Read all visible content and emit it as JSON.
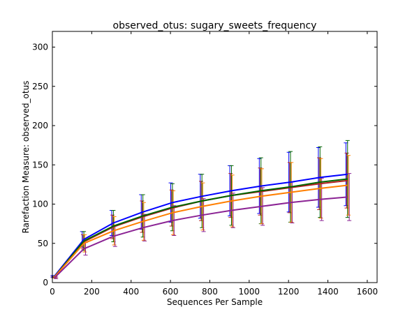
{
  "chart_data": {
    "type": "line",
    "title": "observed_otus: sugary_sweets_frequency",
    "xlabel": "Sequences Per Sample",
    "ylabel": "Rarefaction Measure: observed_otus",
    "xlim": [
      0,
      1650
    ],
    "ylim": [
      0,
      320
    ],
    "xticks": [
      0,
      200,
      400,
      600,
      800,
      1000,
      1200,
      1400,
      1600
    ],
    "yticks": [
      0,
      50,
      100,
      150,
      200,
      250,
      300
    ],
    "grid": false,
    "x": [
      10,
      160,
      310,
      460,
      610,
      760,
      910,
      1060,
      1210,
      1360,
      1500
    ],
    "series": [
      {
        "color": "#0000ff",
        "values": [
          8,
          55,
          76,
          90,
          102,
          110,
          117,
          123,
          128,
          134,
          138
        ],
        "err": [
          1,
          10,
          16,
          22,
          25,
          28,
          32,
          35,
          38,
          38,
          40
        ]
      },
      {
        "color": "#b22222",
        "values": [
          7,
          52,
          71,
          84,
          95,
          104,
          111,
          116,
          121,
          126,
          130
        ],
        "err": [
          1,
          9,
          15,
          20,
          23,
          25,
          28,
          30,
          32,
          33,
          35
        ]
      },
      {
        "color": "#006400",
        "values": [
          7,
          53,
          72,
          85,
          96,
          104,
          111,
          117,
          122,
          128,
          132
        ],
        "err": [
          1,
          12,
          20,
          27,
          30,
          34,
          38,
          42,
          45,
          45,
          49
        ]
      },
      {
        "color": "#ff7f00",
        "values": [
          7,
          50,
          66,
          78,
          89,
          97,
          104,
          110,
          115,
          120,
          124
        ],
        "err": [
          1,
          11,
          18,
          24,
          28,
          30,
          33,
          35,
          38,
          38,
          38
        ]
      },
      {
        "color": "#8b2394",
        "values": [
          6,
          43,
          59,
          70,
          79,
          86,
          92,
          97,
          102,
          106,
          109
        ],
        "err": [
          1,
          8,
          13,
          17,
          19,
          21,
          22,
          24,
          26,
          27,
          30
        ]
      }
    ]
  }
}
